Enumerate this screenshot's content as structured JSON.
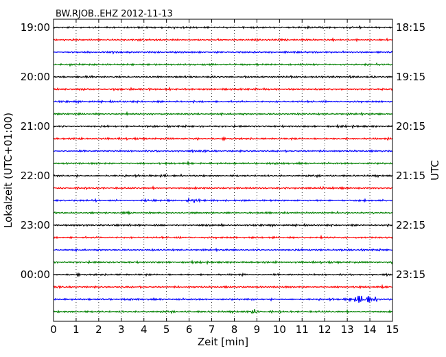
{
  "chart_data": {
    "type": "line",
    "title": "BW.RJOB..EHZ 2012-11-13",
    "xlabel": "Zeit  [min]",
    "ylabel_left": "Lokalzeit (UTC+01:00)",
    "ylabel_right": "UTC",
    "xlim": [
      0,
      15
    ],
    "x_ticks": [
      "0",
      "1",
      "2",
      "3",
      "4",
      "5",
      "6",
      "7",
      "8",
      "9",
      "10",
      "11",
      "12",
      "13",
      "14",
      "15"
    ],
    "grid": "vertical dotted",
    "trace_count": 24,
    "trace_interval_min": 15,
    "trace_colors": [
      "#000000",
      "#ff0000",
      "#0000ff",
      "#008000"
    ],
    "left_ticks": [
      "19:00",
      "20:00",
      "21:00",
      "22:00",
      "23:00",
      "00:00"
    ],
    "right_ticks": [
      "18:15",
      "19:15",
      "20:15",
      "21:15",
      "22:15",
      "23:15"
    ],
    "events": [
      {
        "trace": 22,
        "x_min": 13.7,
        "amplitude": "high"
      },
      {
        "trace": 23,
        "x_min": 8.9,
        "amplitude": "medium"
      },
      {
        "trace": 14,
        "x_min": 6.2,
        "amplitude": "medium"
      }
    ]
  }
}
